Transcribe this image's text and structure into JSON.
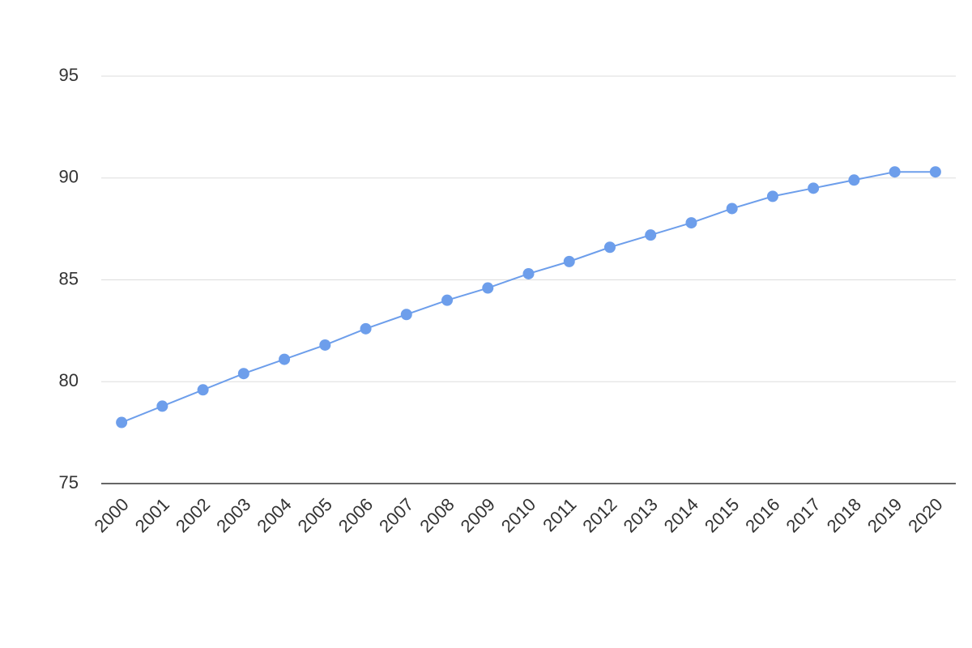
{
  "chart_data": {
    "type": "line",
    "categories": [
      "2000",
      "2001",
      "2002",
      "2003",
      "2004",
      "2005",
      "2006",
      "2007",
      "2008",
      "2009",
      "2010",
      "2011",
      "2012",
      "2013",
      "2014",
      "2015",
      "2016",
      "2017",
      "2018",
      "2019",
      "2020"
    ],
    "values": [
      78.0,
      78.8,
      79.6,
      80.4,
      81.1,
      81.8,
      82.6,
      83.3,
      84.0,
      84.6,
      85.3,
      85.9,
      86.6,
      87.2,
      87.8,
      88.5,
      89.1,
      89.5,
      89.9,
      90.3,
      90.3
    ],
    "color": "#6d9eeb",
    "ylim": [
      75,
      95
    ],
    "yticks": [
      75,
      80,
      85,
      90,
      95
    ],
    "grid": true
  }
}
